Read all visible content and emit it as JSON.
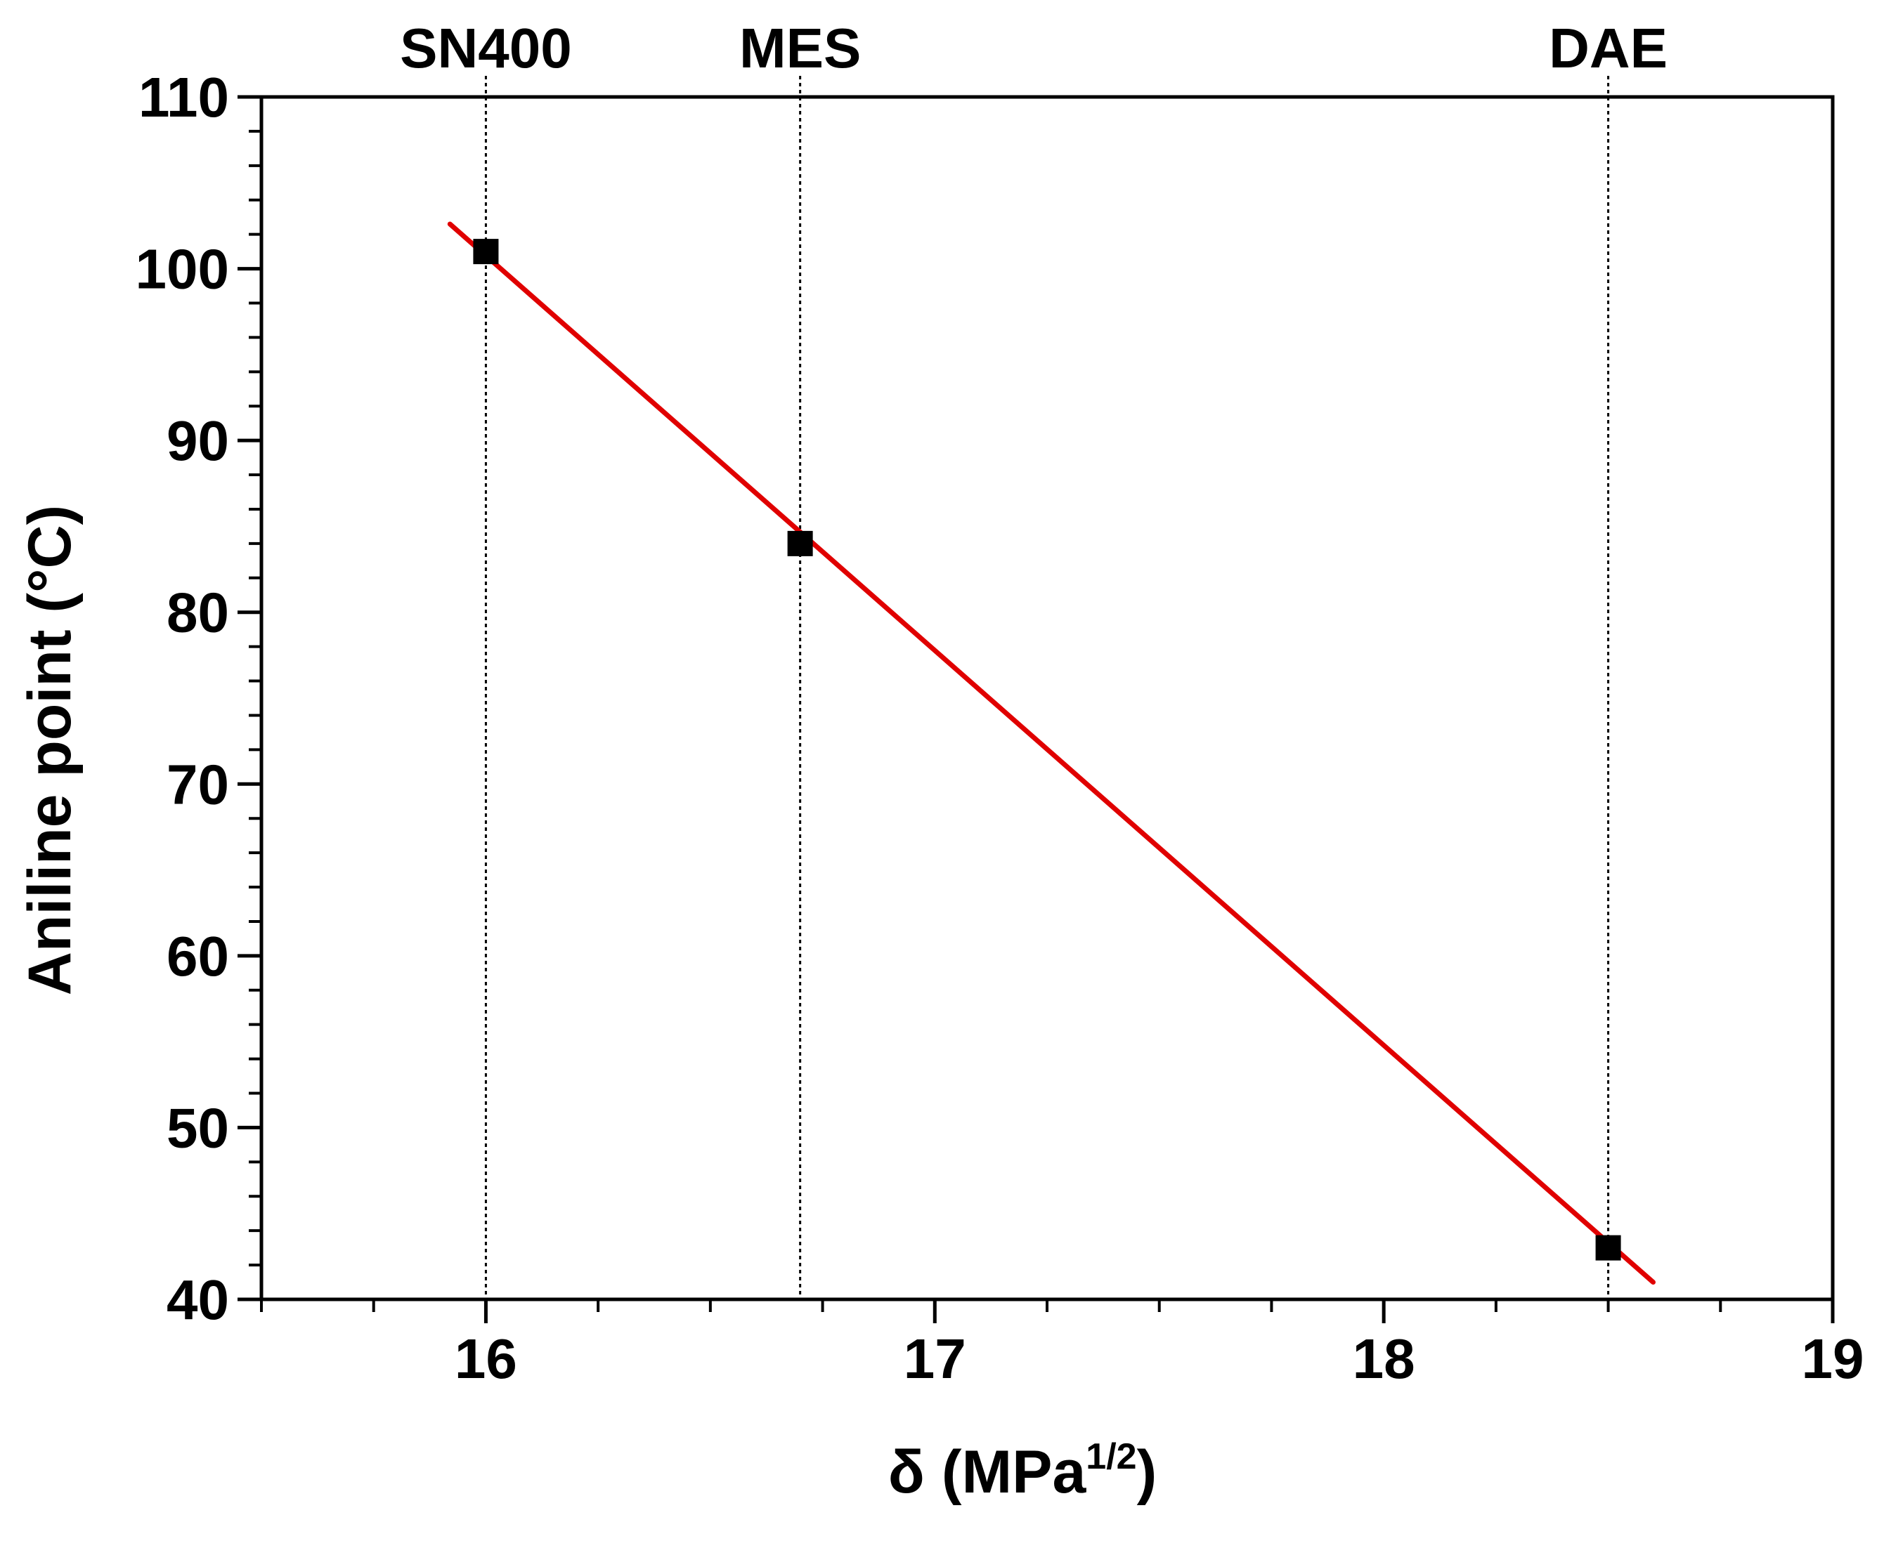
{
  "chart_data": {
    "type": "scatter",
    "title": "",
    "xlabel_main": "δ (MPa",
    "xlabel_sup": "1/2",
    "xlabel_close": ")",
    "ylabel": "Aniline point (°C)",
    "xlim": [
      15.5,
      19
    ],
    "ylim": [
      40,
      110
    ],
    "x_ticks": [
      16,
      17,
      18,
      19
    ],
    "x_minor_step": 0.25,
    "y_ticks": [
      40,
      50,
      60,
      70,
      80,
      90,
      100,
      110
    ],
    "y_minor_step": 2,
    "points": [
      {
        "name": "SN400",
        "x": 16.0,
        "y": 101
      },
      {
        "name": "MES",
        "x": 16.7,
        "y": 84
      },
      {
        "name": "DAE",
        "x": 18.5,
        "y": 43
      }
    ],
    "fit_line": {
      "x0": 15.92,
      "y0": 102.6,
      "x1": 18.6,
      "y1": 41,
      "color": "#e00000"
    },
    "reference_lines": [
      {
        "label": "SN400",
        "x": 16.0
      },
      {
        "label": "MES",
        "x": 16.7
      },
      {
        "label": "DAE",
        "x": 18.5
      }
    ],
    "marker_color": "#000000",
    "grid": false,
    "legend": "none"
  }
}
